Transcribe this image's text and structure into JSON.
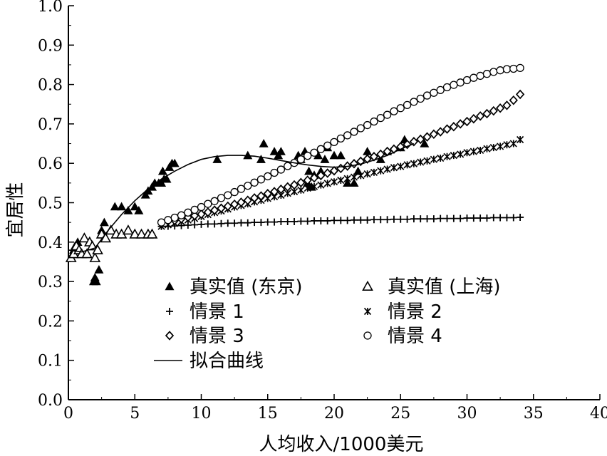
{
  "chart_data": {
    "type": "scatter",
    "xlabel": "人均收入/1000美元",
    "ylabel": "宜居性",
    "xlim": [
      0,
      40
    ],
    "ylim": [
      0,
      1.0
    ],
    "x_ticks": [
      "0",
      "5",
      "10",
      "15",
      "20",
      "25",
      "30",
      "35",
      "40"
    ],
    "y_ticks": [
      "0.0",
      "0.1",
      "0.2",
      "0.3",
      "0.4",
      "0.5",
      "0.6",
      "0.7",
      "0.8",
      "0.9",
      "1.0"
    ],
    "grid": false,
    "legend_position": "center",
    "series": [
      {
        "name": "真实值 (东京)",
        "marker": "filled-triangle",
        "x": [
          0.4,
          0.5,
          0.7,
          1.9,
          2.0,
          2.1,
          2.3,
          2.5,
          2.7,
          3.5,
          4.0,
          4.5,
          5.0,
          5.3,
          5.8,
          6.0,
          6.3,
          6.5,
          6.8,
          7.0,
          7.1,
          7.2,
          7.4,
          7.6,
          7.8,
          8.0,
          11.2,
          13.5,
          14.5,
          14.7,
          15.5,
          15.8,
          16.0,
          17.3,
          17.5,
          17.8,
          18.0,
          18.1,
          18.3,
          18.5,
          18.8,
          19.0,
          19.3,
          19.5,
          20.0,
          20.5,
          21.0,
          21.5,
          21.8,
          22.5,
          23.5,
          24.0,
          25.0,
          25.3,
          26.8
        ],
        "y": [
          0.38,
          0.39,
          0.4,
          0.3,
          0.31,
          0.3,
          0.33,
          0.43,
          0.45,
          0.49,
          0.49,
          0.48,
          0.49,
          0.48,
          0.52,
          0.53,
          0.54,
          0.55,
          0.55,
          0.55,
          0.58,
          0.56,
          0.56,
          0.59,
          0.6,
          0.6,
          0.61,
          0.62,
          0.61,
          0.65,
          0.63,
          0.62,
          0.63,
          0.62,
          0.61,
          0.63,
          0.55,
          0.58,
          0.54,
          0.57,
          0.62,
          0.58,
          0.61,
          0.64,
          0.62,
          0.62,
          0.55,
          0.55,
          0.58,
          0.63,
          0.61,
          0.63,
          0.64,
          0.66,
          0.65
        ]
      },
      {
        "name": "真实值 (上海)",
        "marker": "open-triangle",
        "x": [
          0.2,
          0.4,
          0.6,
          0.8,
          1.0,
          1.2,
          1.4,
          1.6,
          1.8,
          2.0,
          2.2,
          2.5,
          2.8,
          3.2,
          3.6,
          4.0,
          4.5,
          5.0,
          5.5,
          6.0,
          6.3
        ],
        "y": [
          0.36,
          0.37,
          0.39,
          0.38,
          0.37,
          0.41,
          0.37,
          0.4,
          0.39,
          0.36,
          0.38,
          0.42,
          0.41,
          0.43,
          0.42,
          0.42,
          0.43,
          0.42,
          0.42,
          0.42,
          0.42
        ]
      },
      {
        "name": "情景 1",
        "marker": "plus",
        "x": [
          7,
          7.5,
          8,
          8.5,
          9,
          9.5,
          10,
          10.5,
          11,
          11.5,
          12,
          12.5,
          13,
          13.5,
          14,
          14.5,
          15,
          15.5,
          16,
          16.5,
          17,
          17.5,
          18,
          18.5,
          19,
          19.5,
          20,
          20.5,
          21,
          21.5,
          22,
          22.5,
          23,
          23.5,
          24,
          24.5,
          25,
          25.5,
          26,
          26.5,
          27,
          27.5,
          28,
          28.5,
          29,
          29.5,
          30,
          30.5,
          31,
          31.5,
          32,
          32.5,
          33,
          33.5,
          34
        ],
        "y": [
          0.44,
          0.44,
          0.441,
          0.442,
          0.443,
          0.444,
          0.445,
          0.446,
          0.446,
          0.447,
          0.448,
          0.448,
          0.449,
          0.449,
          0.45,
          0.45,
          0.451,
          0.451,
          0.452,
          0.452,
          0.452,
          0.453,
          0.453,
          0.454,
          0.454,
          0.454,
          0.455,
          0.455,
          0.455,
          0.456,
          0.456,
          0.456,
          0.457,
          0.457,
          0.457,
          0.458,
          0.458,
          0.458,
          0.459,
          0.459,
          0.459,
          0.459,
          0.46,
          0.46,
          0.46,
          0.46,
          0.461,
          0.461,
          0.461,
          0.461,
          0.462,
          0.462,
          0.462,
          0.462,
          0.463
        ]
      },
      {
        "name": "情景 2",
        "marker": "star",
        "x": [
          7,
          7.5,
          8,
          8.5,
          9,
          9.5,
          10,
          10.5,
          11,
          11.5,
          12,
          12.5,
          13,
          13.5,
          14,
          14.5,
          15,
          15.5,
          16,
          16.5,
          17,
          17.5,
          18,
          18.5,
          19,
          19.5,
          20,
          20.5,
          21,
          21.5,
          22,
          22.5,
          23,
          23.5,
          24,
          24.5,
          25,
          25.5,
          26,
          26.5,
          27,
          27.5,
          28,
          28.5,
          29,
          29.5,
          30,
          30.5,
          31,
          31.5,
          32,
          32.5,
          33,
          33.5,
          34
        ],
        "y": [
          0.44,
          0.444,
          0.448,
          0.452,
          0.456,
          0.46,
          0.465,
          0.47,
          0.475,
          0.479,
          0.484,
          0.489,
          0.493,
          0.497,
          0.502,
          0.506,
          0.511,
          0.515,
          0.519,
          0.524,
          0.528,
          0.532,
          0.537,
          0.541,
          0.545,
          0.549,
          0.553,
          0.557,
          0.561,
          0.565,
          0.569,
          0.573,
          0.577,
          0.581,
          0.585,
          0.589,
          0.592,
          0.596,
          0.599,
          0.603,
          0.606,
          0.61,
          0.613,
          0.617,
          0.62,
          0.623,
          0.627,
          0.63,
          0.633,
          0.637,
          0.64,
          0.643,
          0.647,
          0.65,
          0.66
        ]
      },
      {
        "name": "情景 3",
        "marker": "diamond",
        "x": [
          8,
          8.5,
          9,
          9.5,
          10,
          10.5,
          11,
          11.5,
          12,
          12.5,
          13,
          13.5,
          14,
          14.5,
          15,
          15.5,
          16,
          16.5,
          17,
          17.5,
          18,
          18.5,
          19,
          19.5,
          20,
          20.5,
          21,
          21.5,
          22,
          22.5,
          23,
          23.5,
          24,
          24.5,
          25,
          25.5,
          26,
          26.5,
          27,
          27.5,
          28,
          28.5,
          29,
          29.5,
          30,
          30.5,
          31,
          31.5,
          32,
          32.5,
          33,
          33.5,
          34
        ],
        "y": [
          0.455,
          0.459,
          0.463,
          0.467,
          0.471,
          0.476,
          0.481,
          0.486,
          0.491,
          0.496,
          0.501,
          0.506,
          0.512,
          0.517,
          0.523,
          0.528,
          0.534,
          0.54,
          0.545,
          0.551,
          0.557,
          0.563,
          0.569,
          0.575,
          0.581,
          0.587,
          0.593,
          0.599,
          0.605,
          0.611,
          0.617,
          0.623,
          0.63,
          0.636,
          0.642,
          0.648,
          0.655,
          0.661,
          0.667,
          0.674,
          0.68,
          0.687,
          0.693,
          0.7,
          0.706,
          0.713,
          0.72,
          0.726,
          0.733,
          0.74,
          0.747,
          0.76,
          0.775
        ]
      },
      {
        "name": "情景 4",
        "marker": "circle",
        "x": [
          7,
          7.5,
          8,
          8.5,
          9,
          9.5,
          10,
          10.5,
          11,
          11.5,
          12,
          12.5,
          13,
          13.5,
          14,
          14.5,
          15,
          15.5,
          16,
          16.5,
          17,
          17.5,
          18,
          18.5,
          19,
          19.5,
          20,
          20.5,
          21,
          21.5,
          22,
          22.5,
          23,
          23.5,
          24,
          24.5,
          25,
          25.5,
          26,
          26.5,
          27,
          27.5,
          28,
          28.5,
          29,
          29.5,
          30,
          30.5,
          31,
          31.5,
          32,
          32.5,
          33,
          33.5,
          34
        ],
        "y": [
          0.45,
          0.456,
          0.462,
          0.468,
          0.475,
          0.482,
          0.489,
          0.497,
          0.504,
          0.512,
          0.519,
          0.527,
          0.535,
          0.543,
          0.551,
          0.559,
          0.567,
          0.576,
          0.584,
          0.593,
          0.601,
          0.61,
          0.619,
          0.627,
          0.636,
          0.645,
          0.654,
          0.663,
          0.671,
          0.68,
          0.689,
          0.697,
          0.706,
          0.715,
          0.723,
          0.732,
          0.74,
          0.748,
          0.756,
          0.764,
          0.772,
          0.779,
          0.786,
          0.793,
          0.799,
          0.805,
          0.811,
          0.817,
          0.822,
          0.827,
          0.832,
          0.836,
          0.839,
          0.84,
          0.842
        ]
      },
      {
        "name": "拟合曲线",
        "marker": "line",
        "x": [
          0,
          1,
          2,
          3,
          4,
          5,
          6,
          7,
          8,
          9,
          10,
          11,
          12,
          13,
          14,
          15,
          16,
          17,
          18,
          19,
          20,
          21,
          22,
          23,
          24,
          25,
          26
        ],
        "y": [
          0.38,
          0.375,
          0.385,
          0.43,
          0.47,
          0.505,
          0.535,
          0.56,
          0.58,
          0.597,
          0.61,
          0.617,
          0.62,
          0.62,
          0.618,
          0.613,
          0.607,
          0.601,
          0.596,
          0.592,
          0.59,
          0.592,
          0.598,
          0.608,
          0.62,
          0.636,
          0.65
        ]
      }
    ]
  }
}
